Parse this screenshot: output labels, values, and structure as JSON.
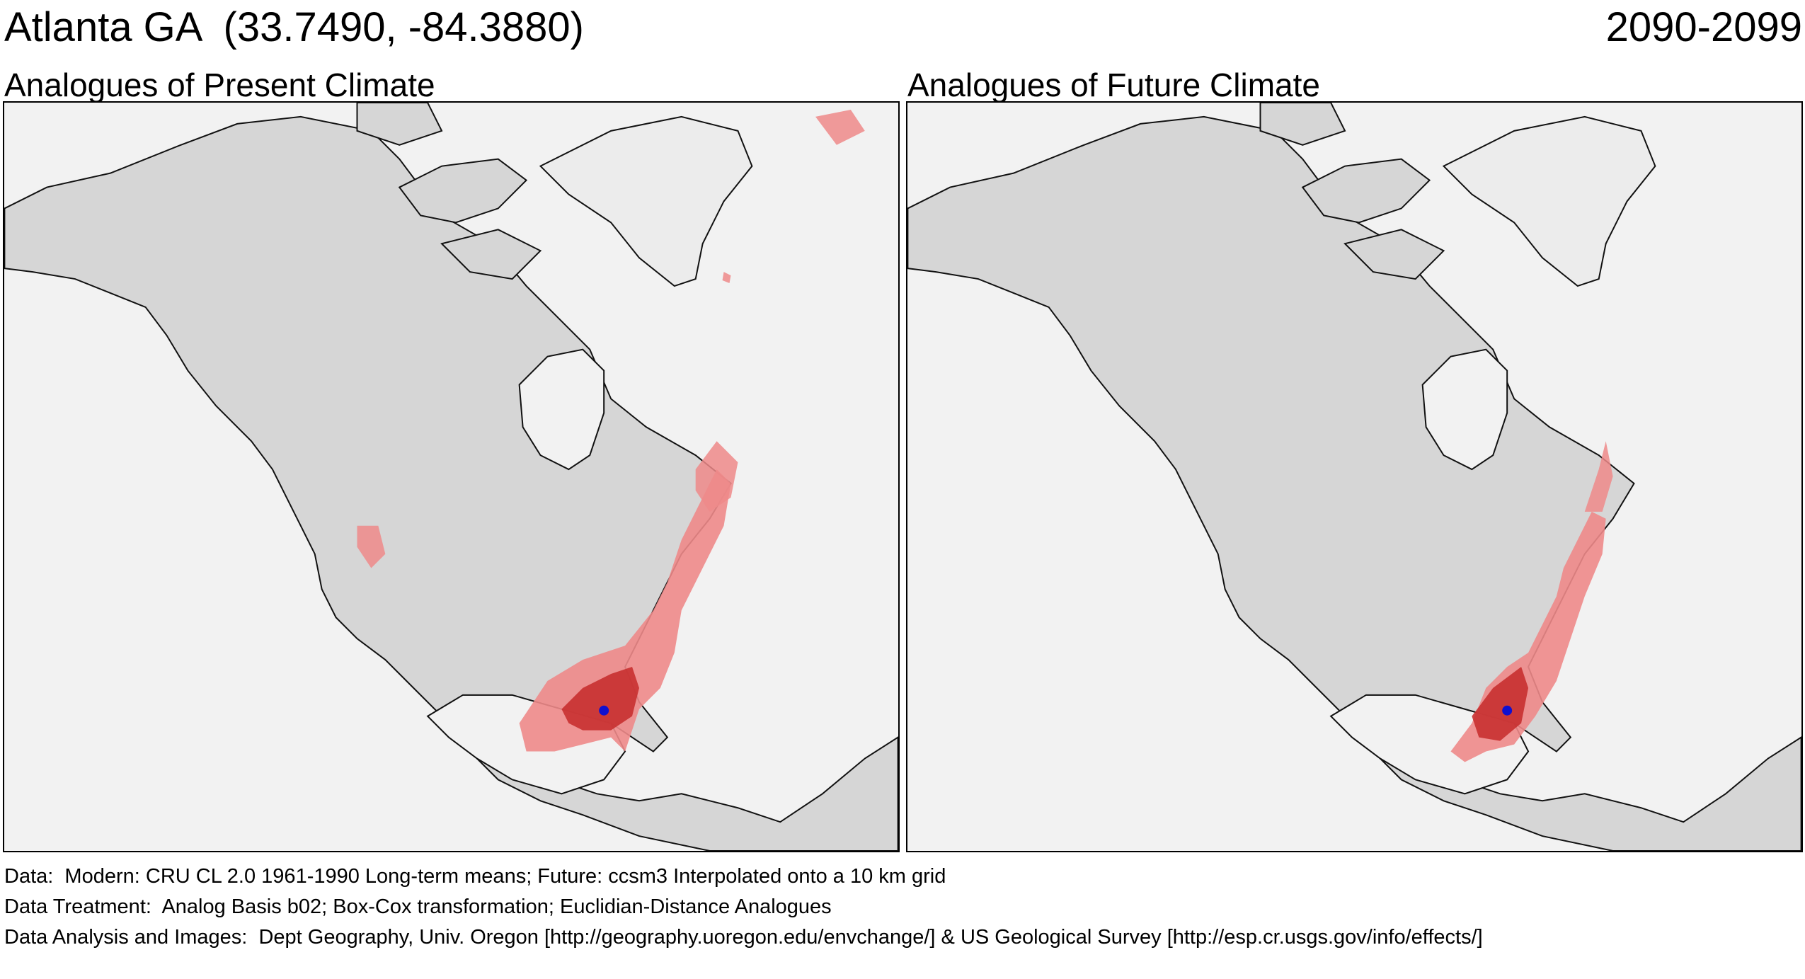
{
  "header": {
    "location": "Atlanta GA  (33.7490, -84.3880)",
    "period": "2090-2099"
  },
  "panels": [
    {
      "title": "Analogues of Present Climate"
    },
    {
      "title": "Analogues of Future Climate"
    }
  ],
  "footer": {
    "data_line": "Data:  Modern: CRU CL 2.0 1961-1990 Long-term means; Future: ccsm3 Interpolated onto a 10 km grid",
    "treatment_line": "Data Treatment:  Analog Basis b02; Box-Cox transformation; Euclidian-Distance Analogues",
    "analysis_line": "Data Analysis and Images:  Dept Geography, Univ. Oregon [http://geography.uoregon.edu/envchange/] & US Geological Survey [http://esp.cr.usgs.gov/info/effects/]"
  },
  "colors": {
    "ocean": "#f2f2f2",
    "land": "#d6d6d6",
    "greenland": "#ececec",
    "coast": "#111111",
    "analog_light": "#ee8a8a",
    "analog_dark": "#c83030",
    "site_marker": "#1010d0"
  }
}
